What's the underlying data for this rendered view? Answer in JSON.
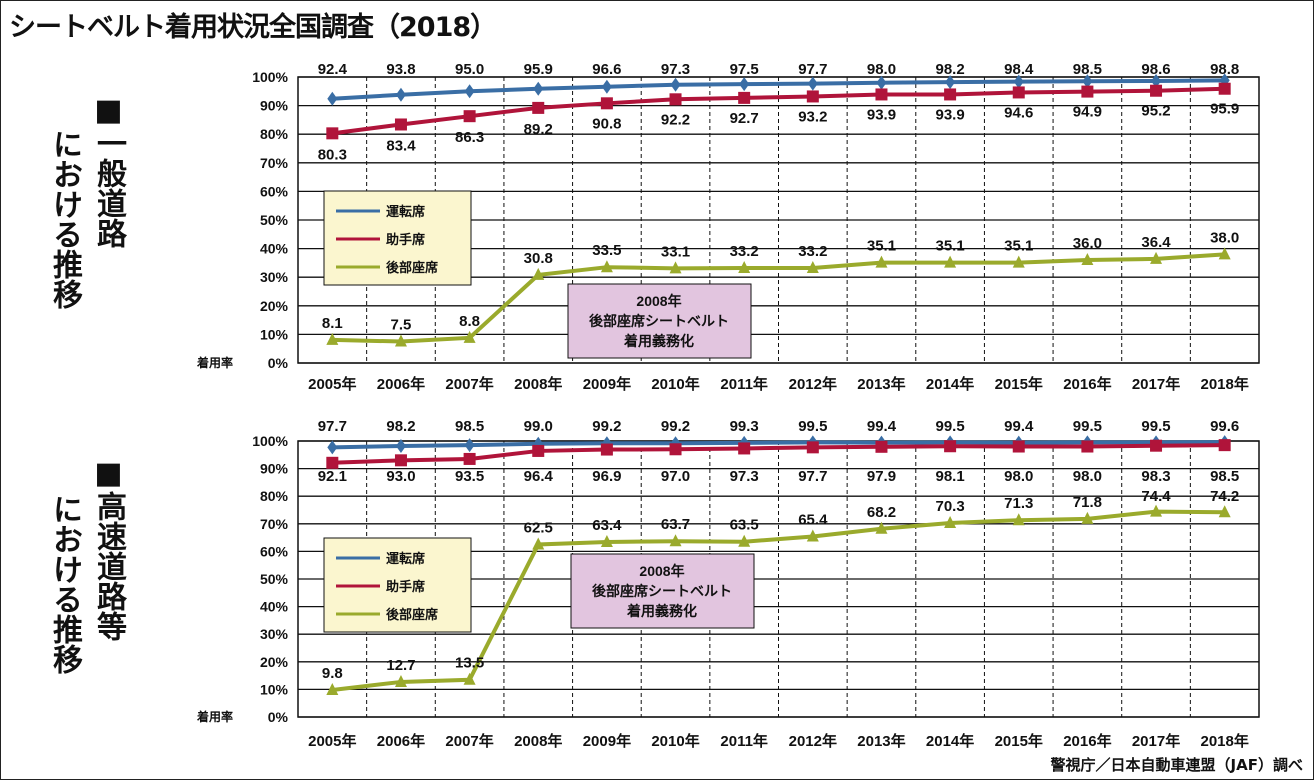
{
  "title": "シートベルト着用状況全国調査（2018）",
  "source": "警視庁／日本自動車連盟（JAF）調べ",
  "colors": {
    "driver": "#3a6ea5",
    "passenger": "#b0143a",
    "rear": "#9aaa2c",
    "legend_bg": "#fbf6cf",
    "note_bg": "#e2c5df"
  },
  "chart_data": [
    {
      "type": "line",
      "side_title": [
        "■一般道路",
        "における推移"
      ],
      "ylabel": "着用率",
      "ylim": [
        0,
        100
      ],
      "yticks": [
        "0%",
        "10%",
        "20%",
        "30%",
        "40%",
        "50%",
        "60%",
        "70%",
        "80%",
        "90%",
        "100%"
      ],
      "categories": [
        "2005年",
        "2006年",
        "2007年",
        "2008年",
        "2009年",
        "2010年",
        "2011年",
        "2012年",
        "2013年",
        "2014年",
        "2015年",
        "2016年",
        "2017年",
        "2018年"
      ],
      "series": [
        {
          "name": "運転席",
          "values": [
            92.4,
            93.8,
            95.0,
            95.9,
            96.6,
            97.3,
            97.5,
            97.7,
            98.0,
            98.2,
            98.4,
            98.5,
            98.6,
            98.8
          ]
        },
        {
          "name": "助手席",
          "values": [
            80.3,
            83.4,
            86.3,
            89.2,
            90.8,
            92.2,
            92.7,
            93.2,
            93.9,
            93.9,
            94.6,
            94.9,
            95.2,
            95.9
          ]
        },
        {
          "name": "後部座席",
          "values": [
            8.1,
            7.5,
            8.8,
            30.8,
            33.5,
            33.1,
            33.2,
            33.2,
            35.1,
            35.1,
            35.1,
            36.0,
            36.4,
            38.0
          ]
        }
      ],
      "annotation": [
        "2008年",
        "後部座席シートベルト",
        "着用義務化"
      ],
      "legend": "left-middle"
    },
    {
      "type": "line",
      "side_title": [
        "■高速道路等",
        "における推移"
      ],
      "ylabel": "着用率",
      "ylim": [
        0,
        100
      ],
      "yticks": [
        "0%",
        "10%",
        "20%",
        "30%",
        "40%",
        "50%",
        "60%",
        "70%",
        "80%",
        "90%",
        "100%"
      ],
      "categories": [
        "2005年",
        "2006年",
        "2007年",
        "2008年",
        "2009年",
        "2010年",
        "2011年",
        "2012年",
        "2013年",
        "2014年",
        "2015年",
        "2016年",
        "2017年",
        "2018年"
      ],
      "series": [
        {
          "name": "運転席",
          "values": [
            97.7,
            98.2,
            98.5,
            99.0,
            99.2,
            99.2,
            99.3,
            99.5,
            99.4,
            99.5,
            99.4,
            99.5,
            99.5,
            99.6
          ]
        },
        {
          "name": "助手席",
          "values": [
            92.1,
            93.0,
            93.5,
            96.4,
            96.9,
            97.0,
            97.3,
            97.7,
            97.9,
            98.1,
            98.0,
            98.0,
            98.3,
            98.5
          ]
        },
        {
          "name": "後部座席",
          "values": [
            9.8,
            12.7,
            13.5,
            62.5,
            63.4,
            63.7,
            63.5,
            65.4,
            68.2,
            70.3,
            71.3,
            71.8,
            74.4,
            74.2
          ]
        }
      ],
      "annotation": [
        "2008年",
        "後部座席シートベルト",
        "着用義務化"
      ],
      "legend": "left-middle"
    }
  ]
}
